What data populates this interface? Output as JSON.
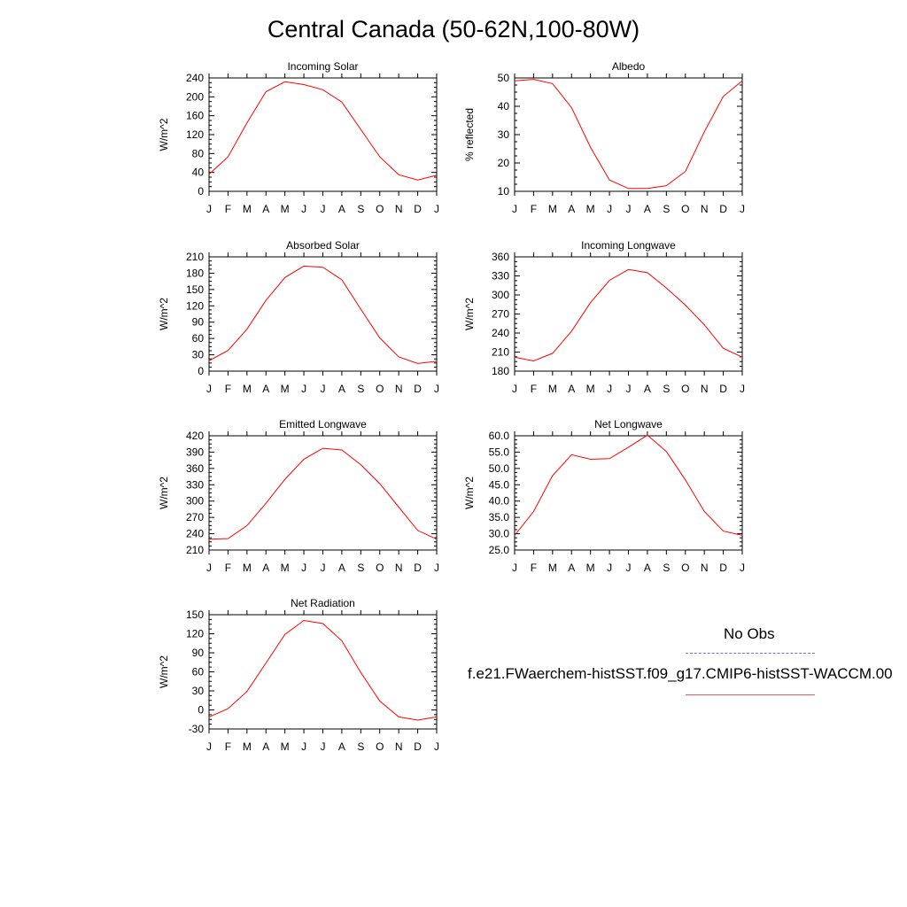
{
  "title": "Central Canada (50-62N,100-80W)",
  "legend": {
    "obs_label": "No Obs",
    "obs_color": "#6d6ff0",
    "model_label": "f.e21.FWaerchem-histSST.f09_g17.CMIP6-histSST-WACCM.00",
    "model_color": "#ff0000"
  },
  "chart_data": [
    {
      "type": "line",
      "title": "Incoming Solar",
      "ylabel": "W/m^2",
      "categories": [
        "J",
        "F",
        "M",
        "A",
        "M",
        "J",
        "J",
        "A",
        "S",
        "O",
        "N",
        "D",
        "J"
      ],
      "ylim": [
        0,
        240
      ],
      "yticks": [
        0,
        40,
        80,
        120,
        160,
        200,
        240
      ],
      "ytick_labels": [
        "0",
        "40",
        "80",
        "120",
        "160",
        "200",
        "240"
      ],
      "values": [
        36,
        73,
        145,
        211,
        232,
        226,
        215,
        189,
        131,
        73,
        35,
        24,
        34
      ]
    },
    {
      "type": "line",
      "title": "Albedo",
      "ylabel": "% reflected",
      "categories": [
        "J",
        "F",
        "M",
        "A",
        "M",
        "J",
        "J",
        "A",
        "S",
        "O",
        "N",
        "D",
        "J"
      ],
      "ylim": [
        10,
        50
      ],
      "yticks": [
        10,
        20,
        30,
        40,
        50
      ],
      "ytick_labels": [
        "10",
        "20",
        "30",
        "40",
        "50"
      ],
      "values": [
        49,
        49.5,
        48,
        39.5,
        25.5,
        14,
        11,
        11,
        12,
        17,
        31,
        43.5,
        49
      ]
    },
    {
      "type": "line",
      "title": "Absorbed Solar",
      "ylabel": "W/m^2",
      "categories": [
        "J",
        "F",
        "M",
        "A",
        "M",
        "J",
        "J",
        "A",
        "S",
        "O",
        "N",
        "D",
        "J"
      ],
      "ylim": [
        0,
        210
      ],
      "yticks": [
        0,
        30,
        60,
        90,
        120,
        150,
        180,
        210
      ],
      "ytick_labels": [
        "0",
        "30",
        "60",
        "90",
        "120",
        "150",
        "180",
        "210"
      ],
      "values": [
        19,
        38,
        77,
        130,
        172,
        193,
        191,
        168,
        114,
        61,
        26,
        14,
        18
      ]
    },
    {
      "type": "line",
      "title": "Incoming Longwave",
      "ylabel": "W/m^2",
      "categories": [
        "J",
        "F",
        "M",
        "A",
        "M",
        "J",
        "J",
        "A",
        "S",
        "O",
        "N",
        "D",
        "J"
      ],
      "ylim": [
        180,
        360
      ],
      "yticks": [
        180,
        210,
        240,
        270,
        300,
        330,
        360
      ],
      "ytick_labels": [
        "180",
        "210",
        "240",
        "270",
        "300",
        "330",
        "360"
      ],
      "values": [
        202,
        196,
        208,
        243,
        288,
        323,
        340,
        335,
        311,
        284,
        253,
        216,
        202
      ]
    },
    {
      "type": "line",
      "title": "Emitted Longwave",
      "ylabel": "W/m^2",
      "categories": [
        "J",
        "F",
        "M",
        "A",
        "M",
        "J",
        "J",
        "A",
        "S",
        "O",
        "N",
        "D",
        "J"
      ],
      "ylim": [
        210,
        420
      ],
      "yticks": [
        210,
        240,
        270,
        300,
        330,
        360,
        390,
        420
      ],
      "ytick_labels": [
        "210",
        "240",
        "270",
        "300",
        "330",
        "360",
        "390",
        "420"
      ],
      "values": [
        230,
        231,
        255,
        296,
        340,
        377,
        397,
        394,
        367,
        332,
        289,
        246,
        230
      ]
    },
    {
      "type": "line",
      "title": "Net Longwave",
      "ylabel": "W/m^2",
      "categories": [
        "J",
        "F",
        "M",
        "A",
        "M",
        "J",
        "J",
        "A",
        "S",
        "O",
        "N",
        "D",
        "J"
      ],
      "ylim": [
        25,
        60
      ],
      "yticks": [
        25,
        30,
        35,
        40,
        45,
        50,
        55,
        60
      ],
      "ytick_labels": [
        "25.0",
        "30.0",
        "35.0",
        "40.0",
        "45.0",
        "50.0",
        "55.0",
        "60.0"
      ],
      "values": [
        29.5,
        36.8,
        47.8,
        54.2,
        52.8,
        53,
        56.5,
        60.2,
        55.2,
        46.5,
        36.8,
        30.8,
        29.5
      ]
    },
    {
      "type": "line",
      "title": "Net Radiation",
      "ylabel": "W/m^2",
      "categories": [
        "J",
        "F",
        "M",
        "A",
        "M",
        "J",
        "J",
        "A",
        "S",
        "O",
        "N",
        "D",
        "J"
      ],
      "ylim": [
        -30,
        150
      ],
      "yticks": [
        -30,
        0,
        30,
        60,
        90,
        120,
        150
      ],
      "ytick_labels": [
        "-30",
        "0",
        "30",
        "60",
        "90",
        "120",
        "150"
      ],
      "values": [
        -11,
        2,
        29,
        74,
        119,
        141,
        136,
        109,
        59,
        14,
        -11,
        -16,
        -11
      ]
    }
  ]
}
